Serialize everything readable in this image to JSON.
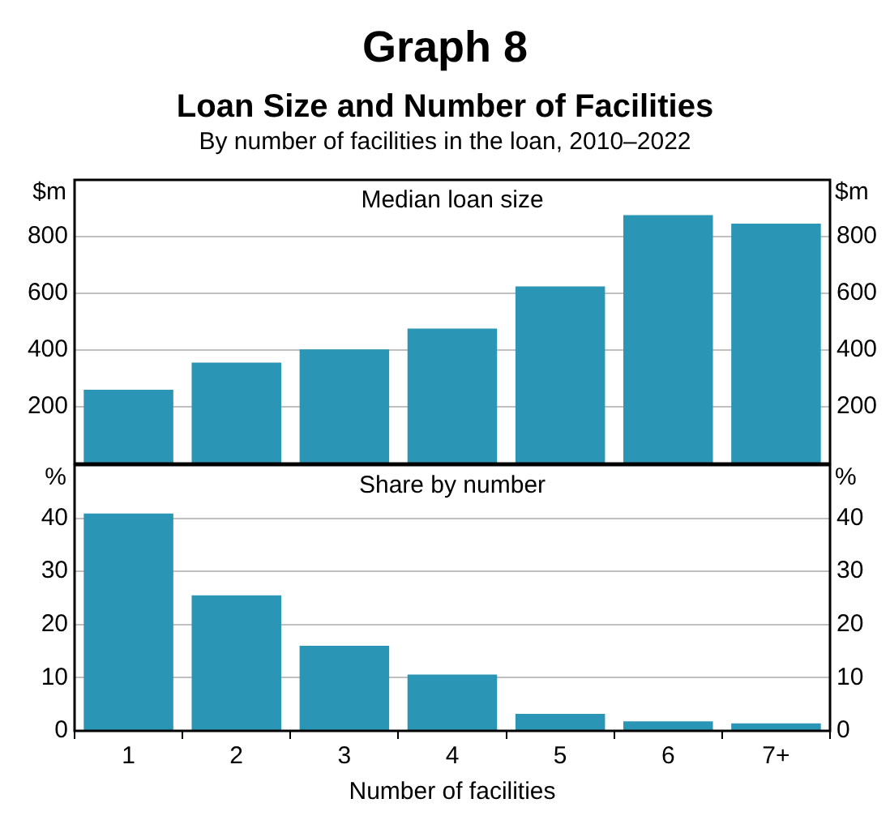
{
  "chart_data": [
    {
      "type": "bar",
      "title": "Graph 8",
      "subtitle": "Loan Size and Number of Facilities",
      "annotations": [
        "By number of facilities in the loan, 2010–2022",
        "Median loan size"
      ],
      "ylabel": "$m",
      "y2label": "$m",
      "categories": [
        null,
        null,
        null,
        null,
        null,
        null,
        null
      ],
      "values": [
        260,
        356,
        402,
        476,
        624,
        876,
        846
      ],
      "color": "#2a95b5",
      "ylim": [
        0,
        1000
      ],
      "yticks": [
        200,
        400,
        600,
        800
      ],
      "y2lim": [
        0,
        1000
      ],
      "y2ticks": [
        200,
        400,
        600,
        800
      ],
      "grid": "y",
      "legend": false,
      "tick_labels": "y"
    },
    {
      "type": "bar",
      "annotations": [
        "Share by number"
      ],
      "xlabel": "Number of facilities",
      "ylabel": "%",
      "y2label": "%",
      "categories": [
        "1",
        "2",
        "3",
        "4",
        "5",
        "6",
        "7+"
      ],
      "values": [
        40.9,
        25.5,
        16.0,
        10.6,
        3.2,
        1.8,
        1.4
      ],
      "color": "#2a95b5",
      "ylim": [
        0,
        50
      ],
      "yticks": [
        0,
        10,
        20,
        30,
        40
      ],
      "y2lim": [
        0,
        50
      ],
      "y2ticks": [
        0,
        10,
        20,
        30,
        40
      ],
      "grid": "y",
      "legend": false
    }
  ]
}
